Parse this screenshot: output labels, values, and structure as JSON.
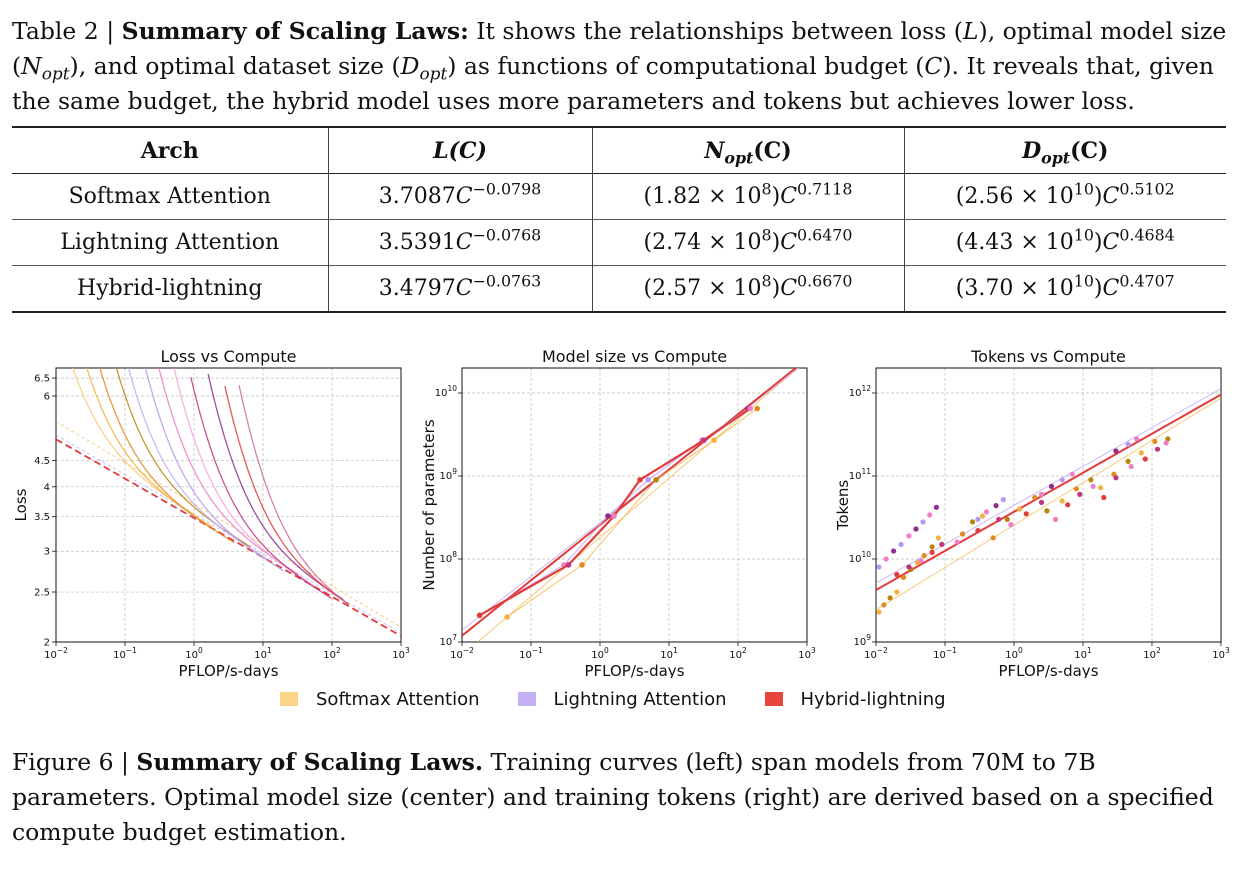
{
  "table_caption": {
    "label": "Table 2 | ",
    "bold": "Summary of Scaling Laws:",
    "text_parts": [
      " It shows the relationships between loss (",
      "L",
      "), optimal model size (",
      "N",
      "opt",
      "), and optimal dataset size (",
      "D",
      "opt",
      ") as functions of computational budget (",
      "C",
      "). It reveals that, given the same budget, the hybrid model uses more parameters and tokens but achieves lower loss."
    ]
  },
  "table": {
    "headers": {
      "arch": "Arch",
      "loss": "L(C)",
      "n_main": "N",
      "n_sub": "opt",
      "n_tail": "(C)",
      "d_main": "D",
      "d_sub": "opt",
      "d_tail": "(C)"
    },
    "rows": [
      {
        "arch": "Softmax Attention",
        "loss_coef": "3.7087",
        "loss_var": "C",
        "loss_exp": "−0.0798",
        "n_pre": "(1.82 × 10",
        "n_pow": "8",
        "n_post": ")",
        "n_var": "C",
        "n_exp": "0.7118",
        "d_pre": "(2.56 × 10",
        "d_pow": "10",
        "d_post": ")",
        "d_var": "C",
        "d_exp": "0.5102"
      },
      {
        "arch": "Lightning Attention",
        "loss_coef": "3.5391",
        "loss_var": "C",
        "loss_exp": "−0.0768",
        "n_pre": "(2.74 × 10",
        "n_pow": "8",
        "n_post": ")",
        "n_var": "C",
        "n_exp": "0.6470",
        "d_pre": "(4.43 × 10",
        "d_pow": "10",
        "d_post": ")",
        "d_var": "C",
        "d_exp": "0.4684"
      },
      {
        "arch": "Hybrid-lightning",
        "loss_coef": "3.4797",
        "loss_var": "C",
        "loss_exp": "−0.0763",
        "n_pre": "(2.57 × 10",
        "n_pow": "8",
        "n_post": ")",
        "n_var": "C",
        "n_exp": "0.6670",
        "d_pre": "(3.70 × 10",
        "d_pow": "10",
        "d_post": ")",
        "d_var": "C",
        "d_exp": "0.4707"
      }
    ]
  },
  "chart_data": [
    {
      "type": "line",
      "title": "Loss vs Compute",
      "xlabel": "PFLOP/s-days",
      "ylabel": "Loss",
      "x_scale": "log",
      "y_scale": "log",
      "xlim": [
        0.01,
        1000
      ],
      "ylim": [
        2,
        6.8
      ],
      "x_ticks": [
        {
          "v": 0.01,
          "base": "10",
          "exp": "−2"
        },
        {
          "v": 0.1,
          "base": "10",
          "exp": "−1"
        },
        {
          "v": 1,
          "base": "10",
          "exp": "0"
        },
        {
          "v": 10,
          "base": "10",
          "exp": "1"
        },
        {
          "v": 100,
          "base": "10",
          "exp": "2"
        },
        {
          "v": 1000,
          "base": "10",
          "exp": "3"
        }
      ],
      "y_ticks": [
        {
          "v": 2,
          "label": "2"
        },
        {
          "v": 2.5,
          "label": "2.5"
        },
        {
          "v": 3,
          "label": "3"
        },
        {
          "v": 3.5,
          "label": "3.5"
        },
        {
          "v": 4,
          "label": "4"
        },
        {
          "v": 4.5,
          "label": "4.5"
        },
        {
          "v": 6,
          "label": "6"
        },
        {
          "v": 6.5,
          "label": "6.5"
        }
      ],
      "grid": true,
      "fits": [
        {
          "series": "Softmax Attention",
          "coef": 3.7087,
          "exp": -0.0798
        },
        {
          "series": "Lightning Attention",
          "coef": 3.5391,
          "exp": -0.0768
        },
        {
          "series": "Hybrid-lightning",
          "coef": 3.4797,
          "exp": -0.0763
        }
      ]
    },
    {
      "type": "scatter",
      "title": "Model size vs Compute",
      "xlabel": "PFLOP/s-days",
      "ylabel": "Number of parameters",
      "x_scale": "log",
      "y_scale": "log",
      "xlim": [
        0.01,
        1000
      ],
      "ylim": [
        10000000,
        20000000000
      ],
      "x_ticks": [
        {
          "v": 0.01,
          "base": "10",
          "exp": "−2"
        },
        {
          "v": 0.1,
          "base": "10",
          "exp": "−1"
        },
        {
          "v": 1,
          "base": "10",
          "exp": "0"
        },
        {
          "v": 10,
          "base": "10",
          "exp": "1"
        },
        {
          "v": 100,
          "base": "10",
          "exp": "2"
        },
        {
          "v": 1000,
          "base": "10",
          "exp": "3"
        }
      ],
      "y_ticks": [
        {
          "v": 10000000,
          "base": "10",
          "exp": "7"
        },
        {
          "v": 100000000,
          "base": "10",
          "exp": "8"
        },
        {
          "v": 1000000000,
          "base": "10",
          "exp": "9"
        },
        {
          "v": 10000000000,
          "base": "10",
          "exp": "10"
        }
      ],
      "grid": true,
      "series": [
        {
          "name": "Softmax Attention",
          "points": [
            [
              0.045,
              20000000
            ],
            [
              0.55,
              85000000
            ],
            [
              6.5,
              900000000
            ],
            [
              45,
              2700000000
            ],
            [
              190,
              6500000000
            ]
          ]
        },
        {
          "name": "Lightning Attention",
          "points": [
            [
              0.018,
              21000000
            ],
            [
              0.3,
              85000000
            ],
            [
              1.3,
              330000000
            ],
            [
              5.0,
              900000000
            ],
            [
              30,
              2700000000
            ],
            [
              140,
              6500000000
            ]
          ]
        },
        {
          "name": "Hybrid-lightning",
          "points": [
            [
              0.018,
              21000000
            ],
            [
              0.35,
              85000000
            ],
            [
              1.6,
              330000000
            ],
            [
              3.8,
              900000000
            ],
            [
              32,
              2700000000
            ],
            [
              150,
              6500000000
            ]
          ]
        }
      ],
      "fits": [
        {
          "series": "Softmax Attention",
          "coef": 182000000,
          "exp": 0.7118
        },
        {
          "series": "Lightning Attention",
          "coef": 274000000,
          "exp": 0.647
        },
        {
          "series": "Hybrid-lightning",
          "coef": 257000000,
          "exp": 0.667
        }
      ]
    },
    {
      "type": "scatter",
      "title": "Tokens vs Compute",
      "xlabel": "PFLOP/s-days",
      "ylabel": "Tokens",
      "x_scale": "log",
      "y_scale": "log",
      "xlim": [
        0.01,
        1000
      ],
      "ylim": [
        1000000000,
        2000000000000
      ],
      "x_ticks": [
        {
          "v": 0.01,
          "base": "10",
          "exp": "−2"
        },
        {
          "v": 0.1,
          "base": "10",
          "exp": "−1"
        },
        {
          "v": 1,
          "base": "10",
          "exp": "0"
        },
        {
          "v": 10,
          "base": "10",
          "exp": "1"
        },
        {
          "v": 100,
          "base": "10",
          "exp": "2"
        },
        {
          "v": 1000,
          "base": "10",
          "exp": "3"
        }
      ],
      "y_ticks": [
        {
          "v": 1000000000,
          "base": "10",
          "exp": "9"
        },
        {
          "v": 10000000000,
          "base": "10",
          "exp": "10"
        },
        {
          "v": 100000000000,
          "base": "10",
          "exp": "11"
        },
        {
          "v": 1000000000000,
          "base": "10",
          "exp": "12"
        }
      ],
      "grid": true,
      "series": [
        {
          "name": "Softmax Attention",
          "points": [
            [
              0.011,
              2300000000
            ],
            [
              0.013,
              2800000000
            ],
            [
              0.016,
              3400000000
            ],
            [
              0.02,
              4000000000
            ],
            [
              0.025,
              6000000000
            ],
            [
              0.032,
              7500000000
            ],
            [
              0.04,
              9000000000
            ],
            [
              0.05,
              11000000000
            ],
            [
              0.065,
              14000000000
            ],
            [
              0.08,
              18000000000
            ],
            [
              0.18,
              20000000000
            ],
            [
              0.25,
              28000000000
            ],
            [
              0.35,
              33000000000
            ],
            [
              0.5,
              18000000000
            ],
            [
              0.8,
              30000000000
            ],
            [
              1.2,
              40000000000
            ],
            [
              2.0,
              55000000000
            ],
            [
              3.0,
              38000000000
            ],
            [
              5.0,
              50000000000
            ],
            [
              8.0,
              70000000000
            ],
            [
              13.0,
              90000000000
            ],
            [
              18.0,
              72000000000
            ],
            [
              28.0,
              105000000000
            ],
            [
              45.0,
              150000000000
            ],
            [
              70.0,
              190000000000
            ],
            [
              110.0,
              260000000000
            ],
            [
              170.0,
              280000000000
            ]
          ]
        },
        {
          "name": "Lightning Attention",
          "points": [
            [
              0.011,
              8000000000
            ],
            [
              0.014,
              10000000000
            ],
            [
              0.018,
              12500000000
            ],
            [
              0.023,
              15000000000
            ],
            [
              0.03,
              19000000000
            ],
            [
              0.038,
              23000000000
            ],
            [
              0.048,
              28000000000
            ],
            [
              0.06,
              34000000000
            ],
            [
              0.075,
              42000000000
            ],
            [
              0.3,
              30000000000
            ],
            [
              0.4,
              37000000000
            ],
            [
              0.55,
              44000000000
            ],
            [
              0.7,
              52000000000
            ],
            [
              2.5,
              60000000000
            ],
            [
              3.5,
              75000000000
            ],
            [
              5.0,
              90000000000
            ],
            [
              7.0,
              105000000000
            ],
            [
              30.0,
              200000000000
            ],
            [
              45.0,
              240000000000
            ],
            [
              60.0,
              280000000000
            ]
          ]
        },
        {
          "name": "Hybrid-lightning",
          "points": [
            [
              0.02,
              6500000000
            ],
            [
              0.03,
              8000000000
            ],
            [
              0.045,
              9500000000
            ],
            [
              0.065,
              12000000000
            ],
            [
              0.09,
              15000000000
            ],
            [
              0.15,
              16000000000
            ],
            [
              0.3,
              22000000000
            ],
            [
              0.6,
              30000000000
            ],
            [
              0.9,
              26000000000
            ],
            [
              1.5,
              35000000000
            ],
            [
              2.5,
              48000000000
            ],
            [
              4.0,
              30000000000
            ],
            [
              6.0,
              45000000000
            ],
            [
              9.0,
              60000000000
            ],
            [
              14.0,
              75000000000
            ],
            [
              20.0,
              55000000000
            ],
            [
              30.0,
              95000000000
            ],
            [
              50.0,
              130000000000
            ],
            [
              80.0,
              160000000000
            ],
            [
              120.0,
              210000000000
            ],
            [
              160.0,
              250000000000
            ]
          ]
        }
      ],
      "fits": [
        {
          "series": "Softmax Attention",
          "coef": 25600000000,
          "exp": 0.5102
        },
        {
          "series": "Lightning Attention",
          "coef": 44300000000,
          "exp": 0.4684
        },
        {
          "series": "Hybrid-lightning",
          "coef": 37000000000,
          "exp": 0.4707
        }
      ]
    }
  ],
  "legend": {
    "items": [
      {
        "label": "Softmax Attention",
        "color": "#f9c97a"
      },
      {
        "label": "Lightning Attention",
        "color": "#c1aef2"
      },
      {
        "label": "Hybrid-lightning",
        "color": "#e8453c"
      }
    ]
  },
  "colors": {
    "softmax": "#f3b13e",
    "lightning": "#b59af0",
    "hybrid": "#e33b3b",
    "pink": "#ef7fc4",
    "magenta": "#c2367f",
    "orange": "#e38a1f",
    "brown": "#b8860b",
    "purple": "#8e2e8e"
  },
  "figure_caption": {
    "label": "Figure 6 | ",
    "bold": "Summary of Scaling Laws.",
    "text": " Training curves (left) span models from 70M to 7B parameters. Optimal model size (center) and training tokens (right) are derived based on a specified compute budget estimation."
  }
}
